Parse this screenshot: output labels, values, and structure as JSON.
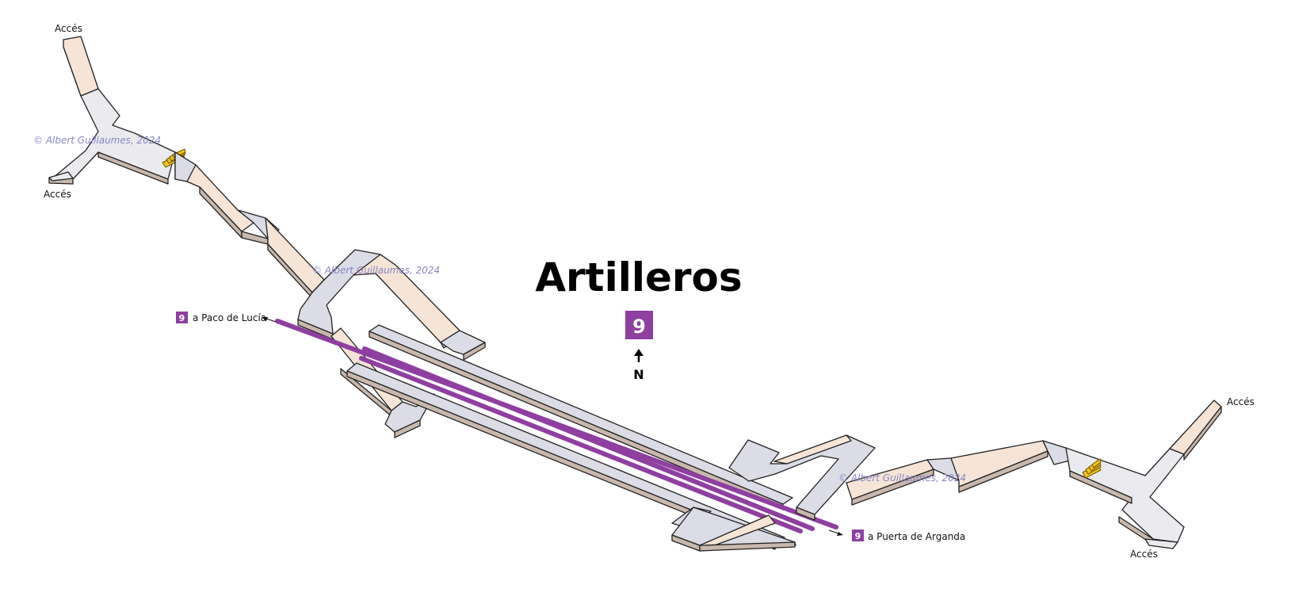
{
  "station": {
    "name": "Artilleros",
    "line": "9",
    "north_label": "N"
  },
  "colors": {
    "line_9": "#8e3fa0",
    "corridor": "#dcdce6",
    "ramp": "#f6e5d6",
    "stairs": "#f4c21a",
    "watermark": "#8a86c6"
  },
  "access_labels": [
    "Accés",
    "Accés",
    "Accés",
    "Accés"
  ],
  "directions": {
    "west": {
      "line": "9",
      "destination": "a Paco de Lucía"
    },
    "east": {
      "line": "9",
      "destination": "a Puerta de Arganda"
    }
  },
  "watermarks": [
    "© Albert Guillaumes, 2024",
    "© Albert Guillaumes, 2024",
    "© Albert Guillaumes, 2024"
  ],
  "icons": [
    "north-arrow-icon",
    "line-badge-icon",
    "escalator-icon"
  ]
}
